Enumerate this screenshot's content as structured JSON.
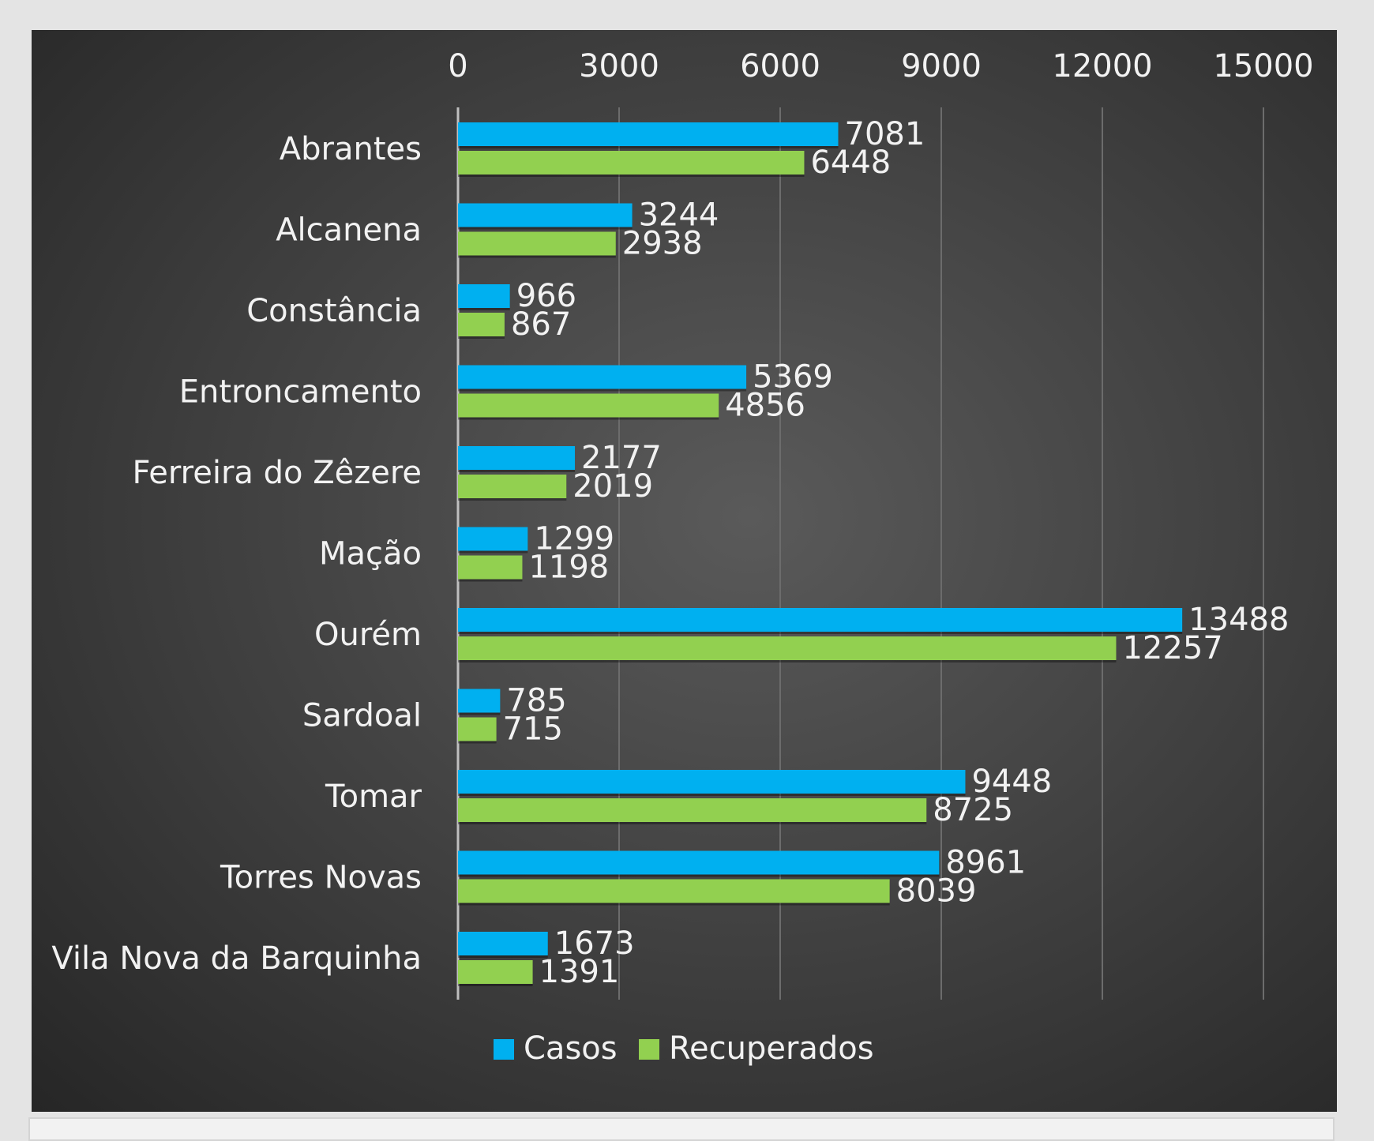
{
  "chart_data": {
    "type": "bar",
    "orientation": "horizontal",
    "title": "",
    "xlabel": "",
    "ylabel": "",
    "categories": [
      "Abrantes",
      "Alcanena",
      "Constância",
      "Entroncamento",
      "Ferreira do Zêzere",
      "Mação",
      "Ourém",
      "Sardoal",
      "Tomar",
      "Torres Novas",
      "Vila Nova da Barquinha"
    ],
    "series": [
      {
        "name": "Casos",
        "color": "#00b0f0",
        "values": [
          7081,
          3244,
          966,
          5369,
          2177,
          1299,
          13488,
          785,
          9448,
          8961,
          1673
        ]
      },
      {
        "name": "Recuperados",
        "color": "#92d050",
        "values": [
          6448,
          2938,
          867,
          4856,
          2019,
          1198,
          12257,
          715,
          8725,
          8039,
          1391
        ]
      }
    ],
    "xlim": [
      0,
      15000
    ],
    "xticks": [
      0,
      3000,
      6000,
      9000,
      12000,
      15000
    ],
    "x_axis_position": "top",
    "grid": true,
    "data_labels": true,
    "legend_position": "bottom"
  }
}
